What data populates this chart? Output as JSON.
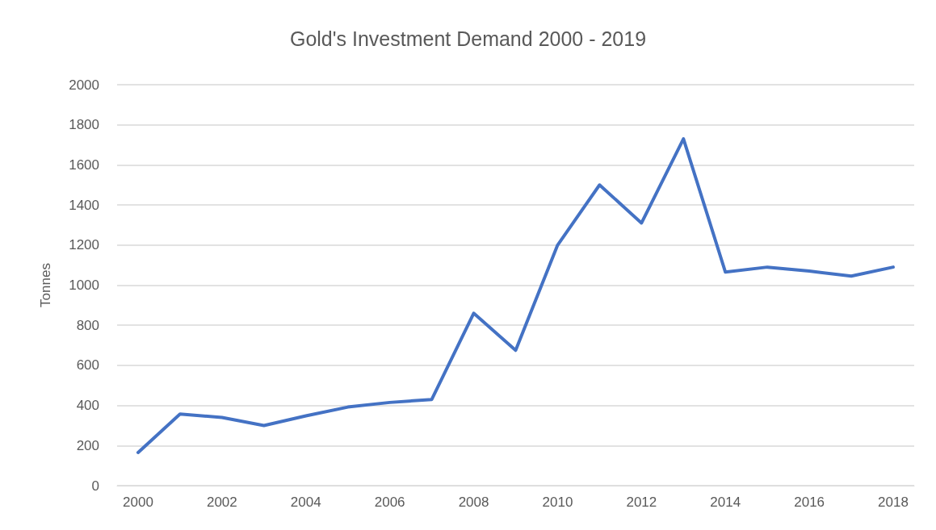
{
  "chart_data": {
    "type": "line",
    "title": "Gold's Investment Demand 2000 - 2019",
    "ylabel": "Tonnes",
    "categories": [
      "2000",
      null,
      "2002",
      null,
      "2004",
      null,
      "2006",
      null,
      "2008",
      null,
      "2010",
      null,
      "2012",
      null,
      "2014",
      null,
      "2016",
      null,
      "2018"
    ],
    "series": [
      {
        "color": "#4472c4",
        "values": [
          165,
          357,
          340,
          300,
          348,
          392,
          415,
          430,
          860,
          675,
          1200,
          1500,
          1310,
          1730,
          1065,
          1090,
          1070,
          1045,
          1090
        ]
      }
    ],
    "ylim": [
      0,
      2000
    ],
    "yticks": [
      0,
      200,
      400,
      600,
      800,
      1000,
      1200,
      1400,
      1600,
      1800,
      2000
    ],
    "grid": "y",
    "marker": "none",
    "line_style": "solid"
  }
}
